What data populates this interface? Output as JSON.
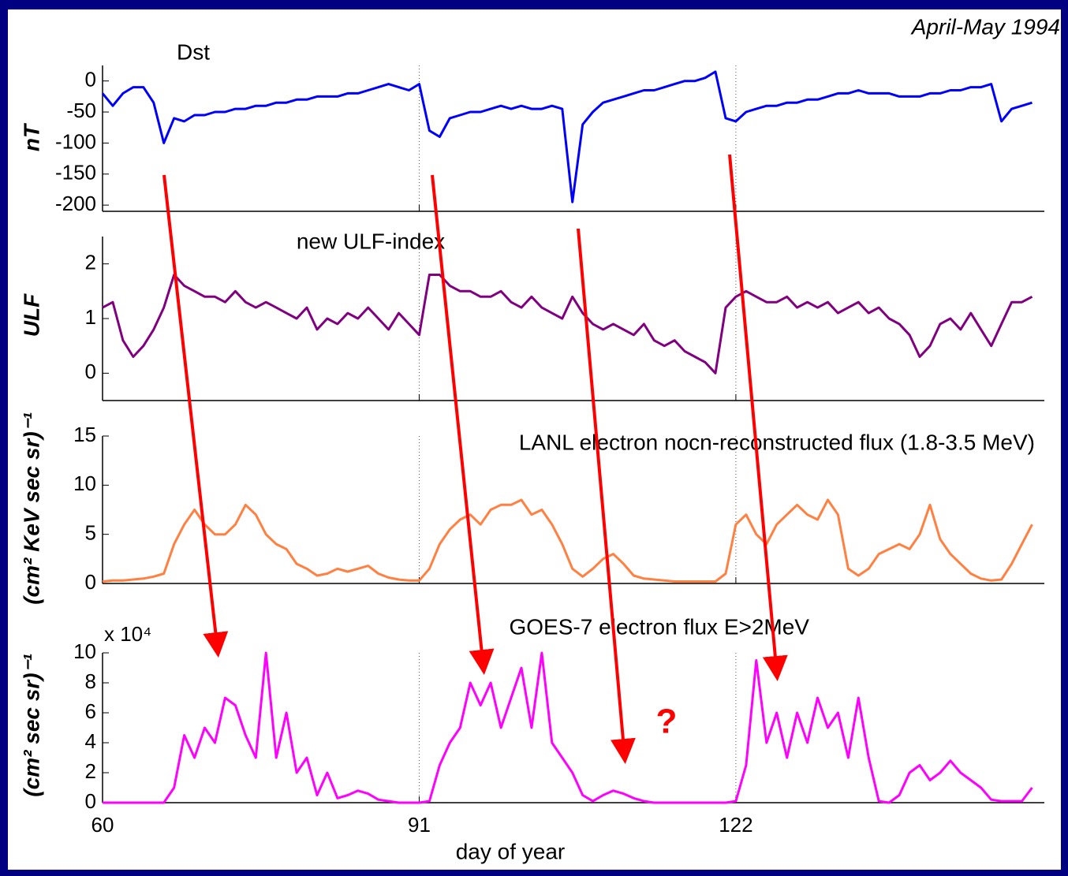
{
  "header": "April-May 1994",
  "chart_data": [
    {
      "type": "line",
      "title": "Dst",
      "ylabel": "nT",
      "color": "#0000ff",
      "x": [
        60,
        61,
        62,
        63,
        64,
        65,
        66,
        67,
        68,
        69,
        70,
        71,
        72,
        73,
        74,
        75,
        76,
        77,
        78,
        79,
        80,
        81,
        82,
        83,
        84,
        85,
        86,
        87,
        88,
        89,
        90,
        91,
        92,
        93,
        94,
        95,
        96,
        97,
        98,
        99,
        100,
        101,
        102,
        103,
        104,
        105,
        106,
        107,
        108,
        109,
        110,
        111,
        112,
        113,
        114,
        115,
        116,
        117,
        118,
        119,
        120,
        121,
        122,
        123,
        124,
        125,
        126,
        127,
        128,
        129,
        130,
        131,
        132,
        133,
        134,
        135,
        136,
        137,
        138,
        139,
        140,
        141,
        142,
        143,
        144,
        145,
        146,
        147,
        148,
        149,
        150,
        151
      ],
      "values": [
        -20,
        -40,
        -20,
        -10,
        -10,
        -35,
        -100,
        -60,
        -65,
        -55,
        -55,
        -50,
        -50,
        -45,
        -45,
        -40,
        -40,
        -35,
        -35,
        -30,
        -30,
        -25,
        -25,
        -25,
        -20,
        -20,
        -15,
        -10,
        -5,
        -10,
        -15,
        -5,
        -80,
        -90,
        -60,
        -55,
        -50,
        -50,
        -45,
        -40,
        -45,
        -40,
        -45,
        -45,
        -40,
        -45,
        -195,
        -70,
        -50,
        -35,
        -30,
        -25,
        -20,
        -15,
        -15,
        -10,
        -5,
        0,
        0,
        5,
        15,
        -60,
        -65,
        -50,
        -45,
        -40,
        -40,
        -35,
        -35,
        -30,
        -30,
        -25,
        -20,
        -20,
        -15,
        -20,
        -20,
        -20,
        -25,
        -25,
        -25,
        -20,
        -20,
        -15,
        -15,
        -10,
        -10,
        -5,
        -65,
        -45,
        -40,
        -35
      ],
      "xlim": [
        60,
        152.2
      ],
      "xticks": [
        60,
        91,
        122
      ],
      "xtick_labels": false,
      "ylim": [
        -210,
        25
      ],
      "yticks": [
        0,
        -50,
        -100,
        -150,
        -200
      ]
    },
    {
      "type": "line",
      "title": "new ULF-index",
      "ylabel": "ULF",
      "color": "#800080",
      "x": [
        60,
        61,
        62,
        63,
        64,
        65,
        66,
        67,
        68,
        69,
        70,
        71,
        72,
        73,
        74,
        75,
        76,
        77,
        78,
        79,
        80,
        81,
        82,
        83,
        84,
        85,
        86,
        87,
        88,
        89,
        90,
        91,
        92,
        93,
        94,
        95,
        96,
        97,
        98,
        99,
        100,
        101,
        102,
        103,
        104,
        105,
        106,
        107,
        108,
        109,
        110,
        111,
        112,
        113,
        114,
        115,
        116,
        117,
        118,
        119,
        120,
        121,
        122,
        123,
        124,
        125,
        126,
        127,
        128,
        129,
        130,
        131,
        132,
        133,
        134,
        135,
        136,
        137,
        138,
        139,
        140,
        141,
        142,
        143,
        144,
        145,
        146,
        147,
        148,
        149,
        150,
        151
      ],
      "values": [
        1.2,
        1.3,
        0.6,
        0.3,
        0.5,
        0.8,
        1.2,
        1.8,
        1.6,
        1.5,
        1.4,
        1.4,
        1.3,
        1.5,
        1.3,
        1.2,
        1.3,
        1.2,
        1.1,
        1.0,
        1.2,
        0.8,
        1.0,
        0.9,
        1.1,
        1.0,
        1.2,
        1.0,
        0.8,
        1.1,
        0.9,
        0.7,
        1.8,
        1.8,
        1.6,
        1.5,
        1.5,
        1.4,
        1.4,
        1.5,
        1.3,
        1.2,
        1.4,
        1.2,
        1.1,
        1.0,
        1.4,
        1.1,
        0.9,
        0.8,
        0.9,
        0.8,
        0.7,
        0.9,
        0.6,
        0.5,
        0.6,
        0.4,
        0.3,
        0.2,
        0.0,
        1.2,
        1.4,
        1.5,
        1.4,
        1.3,
        1.3,
        1.4,
        1.2,
        1.3,
        1.2,
        1.3,
        1.1,
        1.2,
        1.3,
        1.1,
        1.2,
        1.0,
        0.9,
        0.7,
        0.3,
        0.5,
        0.9,
        1.0,
        0.8,
        1.1,
        0.8,
        0.5,
        0.9,
        1.3,
        1.3,
        1.4
      ],
      "xlim": [
        60,
        152.2
      ],
      "xticks": [
        60,
        91,
        122
      ],
      "xtick_labels": false,
      "ylim": [
        -0.5,
        2.5
      ],
      "yticks": [
        0,
        1,
        2
      ]
    },
    {
      "type": "line",
      "title": "LANL electron nocn-reconstructed  flux (1.8-3.5 MeV)",
      "ylabel": "(cm² KeV sec sr)⁻¹",
      "color": "#ff8040",
      "x": [
        60,
        61,
        62,
        63,
        64,
        65,
        66,
        67,
        68,
        69,
        70,
        71,
        72,
        73,
        74,
        75,
        76,
        77,
        78,
        79,
        80,
        81,
        82,
        83,
        84,
        85,
        86,
        87,
        88,
        89,
        90,
        91,
        92,
        93,
        94,
        95,
        96,
        97,
        98,
        99,
        100,
        101,
        102,
        103,
        104,
        105,
        106,
        107,
        108,
        109,
        110,
        111,
        112,
        113,
        114,
        115,
        116,
        117,
        118,
        119,
        120,
        121,
        122,
        123,
        124,
        125,
        126,
        127,
        128,
        129,
        130,
        131,
        132,
        133,
        134,
        135,
        136,
        137,
        138,
        139,
        140,
        141,
        142,
        143,
        144,
        145,
        146,
        147,
        148,
        149,
        150,
        151
      ],
      "values": [
        0.2,
        0.3,
        0.3,
        0.4,
        0.5,
        0.7,
        1,
        4,
        6,
        7.5,
        6,
        5,
        5,
        6,
        8,
        7,
        5,
        4,
        3.5,
        2,
        1.5,
        0.8,
        1,
        1.5,
        1.2,
        1.5,
        1.8,
        1,
        0.6,
        0.4,
        0.3,
        0.3,
        1.5,
        4,
        5.5,
        6.5,
        7,
        6,
        7.5,
        8,
        8,
        8.5,
        7,
        7.5,
        6,
        4,
        1.5,
        0.7,
        1.5,
        2.5,
        3,
        2,
        0.8,
        0.5,
        0.4,
        0.3,
        0.2,
        0.2,
        0.2,
        0.2,
        0.2,
        1,
        6,
        7,
        5,
        4,
        6,
        7,
        8,
        7,
        6.5,
        8.5,
        7,
        1.5,
        0.8,
        1.5,
        3,
        3.5,
        4,
        3.5,
        5,
        8,
        4.5,
        3,
        2,
        1,
        0.5,
        0.3,
        0.4,
        2,
        4,
        6
      ],
      "xlim": [
        60,
        152.2
      ],
      "xticks": [
        60,
        91,
        122
      ],
      "xtick_labels": false,
      "ylim": [
        0,
        15
      ],
      "yticks": [
        0,
        5,
        10,
        15
      ]
    },
    {
      "type": "line",
      "title": "GOES-7 electron flux E>2MeV",
      "ylabel": "(cm²  sec sr)⁻¹",
      "multiplier": "x 10⁴",
      "annotation": "?",
      "xlabel": "day of year",
      "color": "#ff00ff",
      "x": [
        60,
        61,
        62,
        63,
        64,
        65,
        66,
        67,
        68,
        69,
        70,
        71,
        72,
        73,
        74,
        75,
        76,
        77,
        78,
        79,
        80,
        81,
        82,
        83,
        84,
        85,
        86,
        87,
        88,
        89,
        90,
        91,
        92,
        93,
        94,
        95,
        96,
        97,
        98,
        99,
        100,
        101,
        102,
        103,
        104,
        105,
        106,
        107,
        108,
        109,
        110,
        111,
        112,
        113,
        114,
        115,
        116,
        117,
        118,
        119,
        120,
        121,
        122,
        123,
        124,
        125,
        126,
        127,
        128,
        129,
        130,
        131,
        132,
        133,
        134,
        135,
        136,
        137,
        138,
        139,
        140,
        141,
        142,
        143,
        144,
        145,
        146,
        147,
        148,
        149,
        150,
        151
      ],
      "values": [
        0,
        0,
        0,
        0,
        0,
        0,
        0,
        1,
        4.5,
        3,
        5,
        4,
        7,
        6.5,
        4.5,
        3,
        10,
        3,
        6,
        2,
        3,
        0.5,
        2,
        0.3,
        0.5,
        0.8,
        0.6,
        0.2,
        0.1,
        0,
        0,
        0,
        0.1,
        2.5,
        4,
        5,
        8,
        6.5,
        8,
        5,
        7,
        9,
        5,
        10,
        4,
        3,
        2,
        0.5,
        0.1,
        0.5,
        0.8,
        0.6,
        0.3,
        0.1,
        0,
        0,
        0,
        0,
        0,
        0,
        0,
        0,
        0.1,
        2.5,
        9.5,
        4,
        6,
        3,
        6,
        4,
        7,
        5,
        6,
        3,
        7,
        3,
        0.1,
        0,
        0.5,
        2,
        2.5,
        1.5,
        2,
        2.8,
        2,
        1.5,
        1,
        0.2,
        0.1,
        0.1,
        0.1,
        1
      ],
      "xlim": [
        60,
        152.2
      ],
      "xticks": [
        60,
        91,
        122
      ],
      "xtick_labels": true,
      "ylim": [
        0,
        10
      ],
      "yticks": [
        0,
        2,
        4,
        6,
        8,
        10
      ]
    }
  ]
}
